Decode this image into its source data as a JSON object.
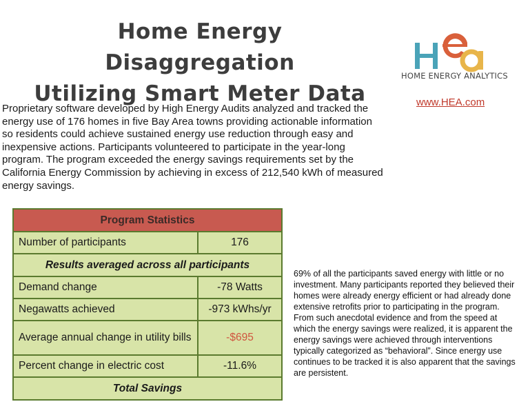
{
  "header": {
    "title_line1": "Home Energy Disaggregation",
    "title_line2": "Utilizing Smart Meter Data"
  },
  "logo": {
    "letters": "HEA",
    "name": "HOME ENERGY ANALYTICS",
    "colors": {
      "h": "#4aa3b8",
      "e": "#d9603b",
      "a": "#e8b54a"
    }
  },
  "link": {
    "url_text": "www.HEA.com"
  },
  "intro": {
    "text": "Proprietary software developed by High Energy Audits analyzed and tracked the energy use of 176 homes in five Bay Area towns providing actionable information so residents could achieve sustained energy use reduction through easy and inexpensive actions. Participants volunteered to participate in the year-long program. The program exceeded the energy savings requirements set by the California Energy Commission by achieving in excess of 212,540 kWh of measured energy savings."
  },
  "stats": {
    "header": "Program Statistics",
    "participants_label": "Number of participants",
    "participants_value": "176",
    "averaged_heading": "Results averaged across all participants",
    "demand_label": "Demand change",
    "demand_value": "-78 Watts",
    "negawatts_label": "Negawatts achieved",
    "negawatts_value": "-973 kWhs/yr",
    "utility_label": "Average annual change in utility bills",
    "utility_value": "-$695",
    "electric_label": "Percent change in electric cost",
    "electric_value": "-11.6%",
    "total_heading": "Total Savings"
  },
  "side": {
    "text": "69% of all the participants saved energy with little or no investment.  Many participants reported they believed their homes were already energy efficient or had already done extensive retrofits prior to participating in the program. From such anecdotal evidence and from the speed at which the energy savings were realized, it is apparent the energy savings were achieved through interventions typically categorized as “behavioral”. Since energy use continues to be tracked it is also apparent that the savings are persistent."
  }
}
